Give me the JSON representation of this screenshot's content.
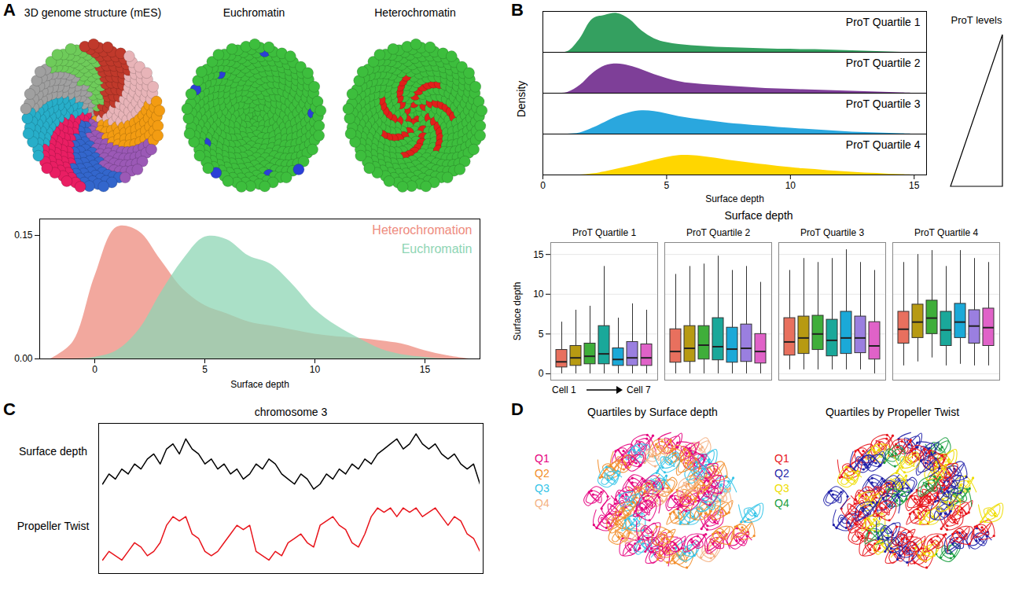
{
  "chart_data": [
    {
      "panel": "A",
      "type": "image",
      "images": [
        {
          "title": "3D genome structure (mES)",
          "colors": [
            "#E8B4B8",
            "#F39C12",
            "#9B59B6",
            "#3366CC",
            "#E91E63",
            "#27AEC9",
            "#A0A0A0",
            "#6ECB5A",
            "#C0392B"
          ]
        },
        {
          "title": "Euchromatin",
          "colors": [
            "#3DBE3D",
            "#2B3FD6"
          ]
        },
        {
          "title": "Heterochromatin",
          "colors": [
            "#3DBE3D",
            "#E0201B"
          ]
        }
      ]
    },
    {
      "panel": "A",
      "type": "density",
      "xlabel": "Surface depth",
      "legend": "top-right",
      "xlim": [
        -2.5,
        17.5
      ],
      "xticks": [
        0,
        5,
        10,
        15
      ],
      "ylim": [
        0,
        0.17
      ],
      "yticks": [
        {
          "value": 0,
          "label": "0.00"
        },
        0.15
      ],
      "x": [
        -2,
        -1,
        0,
        1,
        2,
        3,
        4,
        5,
        6,
        7,
        8,
        9,
        10,
        11,
        12,
        13,
        14,
        15,
        16,
        17
      ],
      "series": [
        {
          "name": "Heterochromation",
          "color": "#EE8B7E",
          "values": [
            0,
            0.02,
            0.1,
            0.16,
            0.155,
            0.12,
            0.085,
            0.065,
            0.055,
            0.045,
            0.04,
            0.035,
            0.03,
            0.027,
            0.025,
            0.022,
            0.018,
            0.01,
            0.004,
            0
          ]
        },
        {
          "name": "Euchromatin",
          "color": "#8ED5B4",
          "values": [
            0,
            0,
            0.002,
            0.01,
            0.035,
            0.08,
            0.12,
            0.148,
            0.145,
            0.125,
            0.115,
            0.09,
            0.06,
            0.04,
            0.025,
            0.012,
            0.005,
            0.002,
            0,
            0
          ]
        }
      ]
    },
    {
      "panel": "B",
      "type": "density",
      "xlabel": "Surface depth",
      "ylabel": "Density",
      "tick_labels": "x",
      "annotations": [
        "ProT levels"
      ],
      "xlim": [
        0,
        15.5
      ],
      "xticks": [
        0,
        5,
        10,
        15
      ],
      "ylim": [
        0,
        1.05
      ],
      "x": [
        0,
        0.5,
        1,
        1.5,
        2,
        2.5,
        3,
        3.5,
        4,
        4.5,
        5,
        5.5,
        6,
        6.5,
        7,
        7.5,
        8,
        8.5,
        9,
        9.5,
        10,
        10.5,
        11,
        11.5,
        12,
        12.5,
        13,
        13.5,
        14,
        14.5,
        15
      ],
      "series": [
        {
          "name": "ProT Quartile 1",
          "color": "#34A060",
          "values": [
            0,
            0,
            0.02,
            0.35,
            0.85,
            0.95,
            1,
            0.85,
            0.55,
            0.35,
            0.25,
            0.2,
            0.17,
            0.15,
            0.13,
            0.12,
            0.11,
            0.1,
            0.09,
            0.08,
            0.08,
            0.07,
            0.07,
            0.06,
            0.05,
            0.04,
            0.03,
            0.02,
            0.01,
            0,
            0
          ]
        },
        {
          "name": "ProT Quartile 2",
          "color": "#7E3F98",
          "values": [
            0,
            0,
            0.02,
            0.2,
            0.5,
            0.7,
            0.75,
            0.7,
            0.6,
            0.48,
            0.38,
            0.3,
            0.25,
            0.22,
            0.2,
            0.18,
            0.16,
            0.14,
            0.12,
            0.11,
            0.1,
            0.09,
            0.08,
            0.07,
            0.06,
            0.05,
            0.04,
            0.03,
            0.02,
            0.01,
            0
          ]
        },
        {
          "name": "ProT Quartile 3",
          "color": "#2AA7DE",
          "values": [
            0,
            0,
            0,
            0.03,
            0.15,
            0.3,
            0.45,
            0.55,
            0.6,
            0.58,
            0.52,
            0.45,
            0.4,
            0.36,
            0.32,
            0.28,
            0.25,
            0.22,
            0.2,
            0.17,
            0.15,
            0.13,
            0.11,
            0.09,
            0.07,
            0.05,
            0.04,
            0.03,
            0.02,
            0.01,
            0
          ]
        },
        {
          "name": "ProT Quartile 4",
          "color": "#FFD600",
          "values": [
            0,
            0,
            0,
            0,
            0.03,
            0.08,
            0.15,
            0.22,
            0.3,
            0.38,
            0.45,
            0.5,
            0.5,
            0.47,
            0.43,
            0.38,
            0.34,
            0.3,
            0.26,
            0.22,
            0.19,
            0.16,
            0.14,
            0.11,
            0.09,
            0.07,
            0.05,
            0.04,
            0.02,
            0.01,
            0
          ]
        }
      ]
    },
    {
      "panel": "B",
      "type": "box",
      "title": "Surface depth",
      "ylabel": "Surface depth",
      "grid": true,
      "tick_labels": "y",
      "annotations": [
        "Cell 1",
        "Cell 7"
      ],
      "ylim": [
        -0.8,
        16.5
      ],
      "yticks": [
        0,
        5,
        10,
        15
      ],
      "colors": [
        "#E8705E",
        "#B79A12",
        "#3FAE3A",
        "#1AA89A",
        "#1BA9D8",
        "#9A7FE0",
        "#E062C8"
      ],
      "facets": [
        {
          "name": "ProT Quartile 1",
          "boxes": [
            {
              "low": 0,
              "q1": 0.8,
              "median": 1.5,
              "q3": 3,
              "high": 6.5
            },
            {
              "low": 0,
              "q1": 1,
              "median": 2,
              "q3": 3.5,
              "high": 8
            },
            {
              "low": 0,
              "q1": 1.2,
              "median": 2.2,
              "q3": 3.8,
              "high": 8.5
            },
            {
              "low": 0,
              "q1": 1.2,
              "median": 2.5,
              "q3": 6,
              "high": 13.5
            },
            {
              "low": 0,
              "q1": 1,
              "median": 1.8,
              "q3": 3.2,
              "high": 7
            },
            {
              "low": 0,
              "q1": 1,
              "median": 2,
              "q3": 4,
              "high": 8.8
            },
            {
              "low": 0,
              "q1": 1,
              "median": 2,
              "q3": 3.7,
              "high": 8
            }
          ]
        },
        {
          "name": "ProT Quartile 2",
          "boxes": [
            {
              "low": 0,
              "q1": 1.4,
              "median": 2.8,
              "q3": 5.6,
              "high": 12.5
            },
            {
              "low": 0,
              "q1": 1.5,
              "median": 3.2,
              "q3": 6,
              "high": 13.5
            },
            {
              "low": 0,
              "q1": 1.8,
              "median": 3.6,
              "q3": 6,
              "high": 13.8
            },
            {
              "low": 0,
              "q1": 1.7,
              "median": 3.4,
              "q3": 7,
              "high": 14.8
            },
            {
              "low": 0,
              "q1": 1.4,
              "median": 3.1,
              "q3": 5.8,
              "high": 13
            },
            {
              "low": 0,
              "q1": 1.5,
              "median": 3.2,
              "q3": 6.2,
              "high": 13.5
            },
            {
              "low": 0,
              "q1": 1.3,
              "median": 2.8,
              "q3": 5,
              "high": 11.5
            }
          ]
        },
        {
          "name": "ProT Quartile 3",
          "boxes": [
            {
              "low": 0.5,
              "q1": 2.3,
              "median": 4,
              "q3": 7,
              "high": 13
            },
            {
              "low": 0.5,
              "q1": 2.5,
              "median": 4.5,
              "q3": 7.2,
              "high": 14.5
            },
            {
              "low": 0.5,
              "q1": 3,
              "median": 5,
              "q3": 7.3,
              "high": 14
            },
            {
              "low": 0.5,
              "q1": 2.2,
              "median": 4.2,
              "q3": 6.8,
              "high": 14.5
            },
            {
              "low": 0.5,
              "q1": 2.5,
              "median": 4.5,
              "q3": 7.8,
              "high": 15.6
            },
            {
              "low": 0.5,
              "q1": 2.6,
              "median": 4.5,
              "q3": 7.2,
              "high": 14
            },
            {
              "low": 0,
              "q1": 1.8,
              "median": 3.5,
              "q3": 6.5,
              "high": 13
            }
          ]
        },
        {
          "name": "ProT Quartile 4",
          "boxes": [
            {
              "low": 1,
              "q1": 3.8,
              "median": 5.6,
              "q3": 7.8,
              "high": 14
            },
            {
              "low": 1.5,
              "q1": 4.5,
              "median": 6.5,
              "q3": 8.7,
              "high": 15
            },
            {
              "low": 2,
              "q1": 5,
              "median": 7,
              "q3": 9.2,
              "high": 15.5
            },
            {
              "low": 1,
              "q1": 3.5,
              "median": 5.5,
              "q3": 7.8,
              "high": 13.5
            },
            {
              "low": 1.2,
              "q1": 4.5,
              "median": 6.5,
              "q3": 8.8,
              "high": 15.5
            },
            {
              "low": 1,
              "q1": 3.8,
              "median": 6,
              "q3": 8,
              "high": 14.5
            },
            {
              "low": 1,
              "q1": 3.5,
              "median": 5.8,
              "q3": 8.2,
              "high": 14
            }
          ]
        }
      ]
    },
    {
      "panel": "C",
      "type": "line",
      "title": "chromosome 3",
      "tick_labels": false,
      "series": [
        {
          "name": "Surface depth",
          "color": "#000000",
          "ylim": [
            4,
            10.5
          ],
          "values": [
            5,
            6,
            5.5,
            6.5,
            6,
            7,
            6.5,
            7.5,
            8,
            7,
            8.5,
            9,
            8,
            9.5,
            8.5,
            8,
            7,
            7.5,
            6.5,
            7,
            6,
            6.5,
            5.5,
            6,
            7,
            6.5,
            7.5,
            7,
            6,
            5.5,
            5,
            6,
            5.5,
            4.5,
            5,
            6,
            5.5,
            6.5,
            6,
            7,
            6.5,
            7.5,
            7,
            8,
            8.5,
            9,
            9.5,
            8.5,
            9,
            10,
            9,
            8.5,
            9,
            8,
            7.5,
            8,
            7,
            6.5,
            7,
            5
          ]
        },
        {
          "name": "Propeller Twist",
          "color": "#E8141B",
          "ylim": [
            2,
            9.5
          ],
          "values": [
            3,
            4,
            3.5,
            3,
            4,
            5,
            4.5,
            3.5,
            4,
            5,
            7,
            8,
            7.5,
            8,
            6,
            5.5,
            4,
            3.5,
            4,
            5,
            6,
            7,
            6.5,
            7,
            4,
            3.5,
            3,
            4,
            3.5,
            5,
            5.5,
            6,
            5,
            4.5,
            7,
            7.5,
            8,
            7,
            6.5,
            5,
            4.5,
            6,
            8,
            9,
            8.5,
            9,
            8,
            9,
            8.5,
            9,
            8,
            8.5,
            9,
            8,
            7,
            8,
            7.5,
            6,
            5.5,
            4
          ]
        }
      ]
    },
    {
      "panel": "D",
      "type": "image",
      "images": [
        {
          "title": "Quartiles by Surface depth",
          "series": [
            {
              "name": "Q1",
              "color": "#E6007E"
            },
            {
              "name": "Q2",
              "color": "#F28C28"
            },
            {
              "name": "Q3",
              "color": "#33C4E8"
            },
            {
              "name": "Q4",
              "color": "#F4B183"
            }
          ]
        },
        {
          "title": "Quartiles by Propeller Twist",
          "series": [
            {
              "name": "Q1",
              "color": "#E8141B"
            },
            {
              "name": "Q2",
              "color": "#1F1FA8"
            },
            {
              "name": "Q3",
              "color": "#EEDD00"
            },
            {
              "name": "Q4",
              "color": "#1A9E3F"
            }
          ]
        }
      ]
    }
  ]
}
